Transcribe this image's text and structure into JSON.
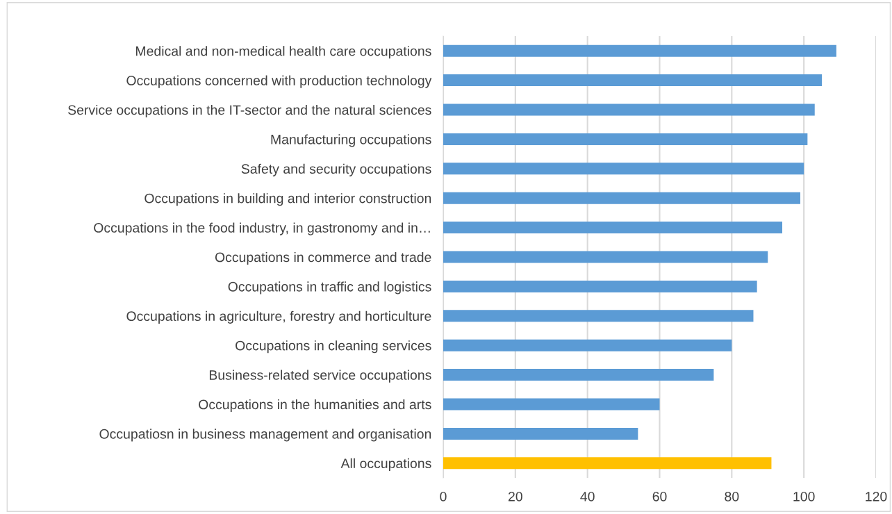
{
  "chart_data": {
    "type": "bar",
    "orientation": "horizontal",
    "categories": [
      "Medical and non-medical health care occupations",
      "Occupations concerned with production technology",
      "Service occupations in the IT-sector and the natural sciences",
      "Manufacturing occupations",
      "Safety and security occupations",
      "Occupations in building and interior construction",
      "Occupations in the food industry, in gastronomy and in…",
      "Occupations in commerce and trade",
      "Occupations in traffic and logistics",
      "Occupations in agriculture, forestry and horticulture",
      "Occupations in cleaning services",
      "Business-related service occupations",
      "Occupations in the humanities and arts",
      "Occupatiosn in business management and organisation",
      "All occupations"
    ],
    "values": [
      109,
      105,
      103,
      101,
      100,
      99,
      94,
      90,
      87,
      86,
      80,
      75,
      60,
      54,
      91
    ],
    "colors": [
      "#5b9bd5",
      "#5b9bd5",
      "#5b9bd5",
      "#5b9bd5",
      "#5b9bd5",
      "#5b9bd5",
      "#5b9bd5",
      "#5b9bd5",
      "#5b9bd5",
      "#5b9bd5",
      "#5b9bd5",
      "#5b9bd5",
      "#5b9bd5",
      "#5b9bd5",
      "#ffc000"
    ],
    "xlim": [
      0,
      120
    ],
    "xticks": [
      0,
      20,
      40,
      60,
      80,
      100,
      120
    ],
    "grid": "x"
  }
}
